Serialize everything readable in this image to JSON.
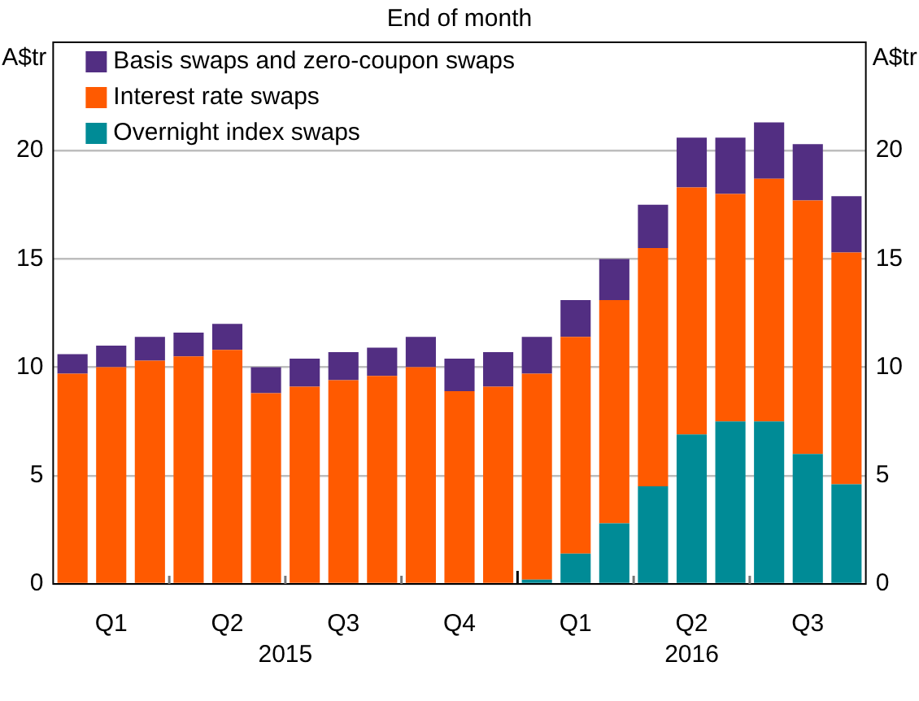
{
  "chart_data": {
    "type": "bar",
    "title": "End of month",
    "ylabel": "A$tr",
    "y2label": "A$tr",
    "categories": [
      null,
      "Q1",
      null,
      null,
      "Q2",
      null,
      null,
      "Q3",
      null,
      null,
      "Q4",
      null,
      null,
      "Q1",
      null,
      null,
      "Q2",
      null,
      null,
      "Q3",
      null
    ],
    "annotations": [
      "2015",
      "2016"
    ],
    "stacked": true,
    "series": [
      {
        "name": "Overnight index swaps",
        "color": "#008b96",
        "values": [
          0,
          0,
          0,
          0,
          0,
          0,
          0,
          0,
          0,
          0,
          0,
          0,
          0.2,
          1.4,
          2.8,
          4.5,
          6.9,
          7.5,
          7.5,
          6.0,
          4.6
        ]
      },
      {
        "name": "Interest rate swaps",
        "color": "#ff5a00",
        "values": [
          9.7,
          10.0,
          10.3,
          10.5,
          10.8,
          8.8,
          9.1,
          9.4,
          9.6,
          10.0,
          8.9,
          9.1,
          9.5,
          10.0,
          10.3,
          11.0,
          11.4,
          10.5,
          11.2,
          11.7,
          10.7
        ]
      },
      {
        "name": "Basis swaps and zero-coupon swaps",
        "color": "#522e82",
        "values": [
          0.9,
          1.0,
          1.1,
          1.1,
          1.2,
          1.2,
          1.3,
          1.3,
          1.3,
          1.4,
          1.5,
          1.6,
          1.7,
          1.7,
          1.9,
          2.0,
          2.3,
          2.6,
          2.6,
          2.6,
          2.6
        ]
      }
    ],
    "ylim": [
      0,
      25
    ],
    "yticks": [
      0,
      5,
      10,
      15,
      20
    ],
    "y2lim": [
      0,
      25
    ],
    "y2ticks": [
      0,
      5,
      10,
      15,
      20
    ],
    "grid": "y",
    "legend": "top left"
  }
}
